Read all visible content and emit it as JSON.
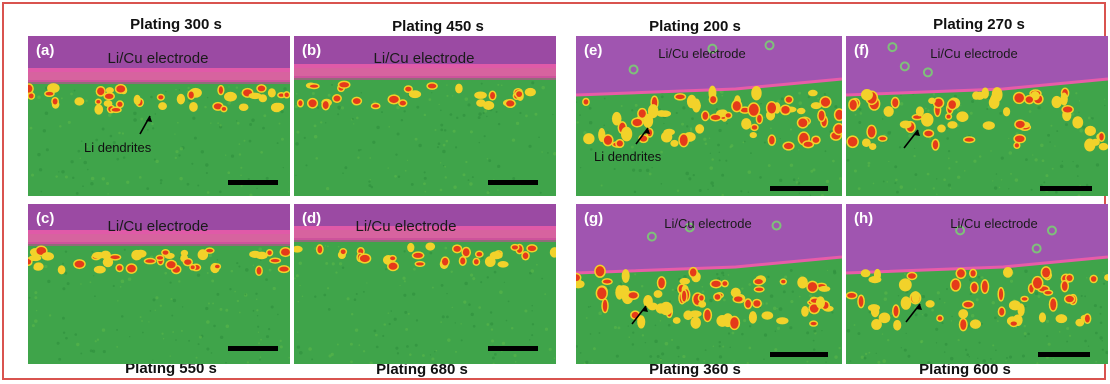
{
  "labels": {
    "electrode": "Li/Cu electrode",
    "dendrites": "Li dendrites"
  },
  "panels": [
    {
      "id": "a",
      "label": "(a)",
      "title": "Plating 300 s"
    },
    {
      "id": "b",
      "label": "(b)",
      "title": "Plating 450 s"
    },
    {
      "id": "c",
      "label": "(c)",
      "title": "Plating 550 s"
    },
    {
      "id": "d",
      "label": "(d)",
      "title": "Plating 680 s"
    },
    {
      "id": "e",
      "label": "(e)",
      "title": "Plating 200 s"
    },
    {
      "id": "f",
      "label": "(f)",
      "title": "Plating 270 s"
    },
    {
      "id": "g",
      "label": "(g)",
      "title": "Plating 360 s"
    },
    {
      "id": "h",
      "label": "(h)",
      "title": "Plating 600 s"
    }
  ],
  "colors": {
    "background": "#3fa44a",
    "electrode_left": "#9b4aa3",
    "electrode_right": "#a055b0",
    "interface": "#e85ca8",
    "dendrite_hot": "#e53a1a",
    "dendrite_warm": "#f2d22a",
    "frame": "#d9534f"
  }
}
